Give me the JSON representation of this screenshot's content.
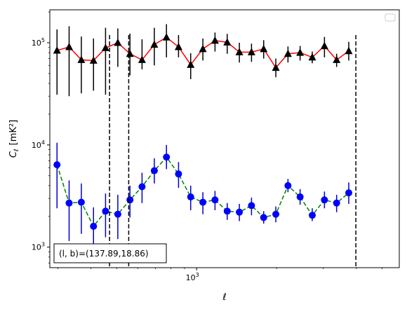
{
  "chart_data": {
    "type": "scatter",
    "x_scale": "log",
    "y_scale": "log",
    "xlim": [
      280,
      5800
    ],
    "ylim": [
      630,
      210000
    ],
    "xlabel": "ℓ",
    "ylabel_main": "C",
    "ylabel_sub": "ℓ",
    "ylabel_unit": "[mK²]",
    "x_ticks": [
      {
        "value": 1000,
        "base": "10",
        "exp": "3"
      }
    ],
    "y_ticks": [
      {
        "value": 1000,
        "base": "10",
        "exp": "3"
      },
      {
        "value": 10000,
        "base": "10",
        "exp": "4"
      },
      {
        "value": 100000,
        "base": "10",
        "exp": "5"
      }
    ],
    "x": [
      298,
      331,
      368,
      409,
      454,
      505,
      561,
      623,
      693,
      770,
      855,
      950,
      1056,
      1173,
      1304,
      1449,
      1610,
      1789,
      1988,
      2209,
      2454,
      2727,
      3031,
      3368,
      3742,
      4158,
      4621
    ],
    "series": [
      {
        "color": "#ff0000",
        "marker": "triangle",
        "marker_color": "#000000",
        "error_color": "#000000",
        "linestyle": "solid",
        "values": [
          84000,
          91000,
          68000,
          67000,
          89000,
          100000,
          78000,
          68000,
          96000,
          113000,
          91000,
          61000,
          87000,
          105000,
          101000,
          81000,
          81000,
          87000,
          57000,
          78000,
          80000,
          72000,
          93000,
          68000,
          83000
        ],
        "x_from_index": 0,
        "err_low": [
          31000,
          30000,
          32000,
          34000,
          31000,
          58000,
          48000,
          55000,
          60000,
          72000,
          72000,
          44000,
          67000,
          82000,
          78000,
          64000,
          65000,
          70000,
          46000,
          64000,
          67000,
          63000,
          72000,
          58000,
          67000
        ],
        "err_high": [
          135000,
          145000,
          115000,
          110000,
          140000,
          138000,
          123000,
          108000,
          140000,
          152000,
          119000,
          79000,
          110000,
          126000,
          122000,
          100000,
          98000,
          106000,
          70000,
          92000,
          93000,
          82000,
          114000,
          78000,
          102000
        ]
      },
      {
        "color": "#008000",
        "marker": "circle",
        "marker_color": "#0000ff",
        "error_color": "#0000cc",
        "linestyle": "dashed",
        "values": [
          6400,
          2700,
          2750,
          1600,
          2250,
          2100,
          2900,
          3900,
          5600,
          7600,
          5200,
          3100,
          2750,
          2900,
          2250,
          2200,
          2550,
          1950,
          2100,
          4000,
          3100,
          2050,
          2900,
          2700,
          3400
        ],
        "err_low": [
          2400,
          1150,
          1350,
          700,
          1250,
          1200,
          1950,
          2700,
          4200,
          5800,
          3800,
          2300,
          2100,
          2300,
          1850,
          1800,
          2050,
          1700,
          1750,
          3450,
          2600,
          1800,
          2400,
          2200,
          2650
        ],
        "err_high": [
          10500,
          4500,
          4200,
          2450,
          3350,
          3250,
          4000,
          5350,
          7400,
          10000,
          6800,
          4000,
          3450,
          3550,
          2700,
          2650,
          3050,
          2250,
          2500,
          4650,
          3700,
          2400,
          3500,
          3250,
          4300
        ]
      }
    ],
    "vlines": [
      470,
      555,
      3980
    ],
    "annotation": "(l, b)=(137.89,18.86)",
    "legend": "top-right",
    "grid": false
  }
}
